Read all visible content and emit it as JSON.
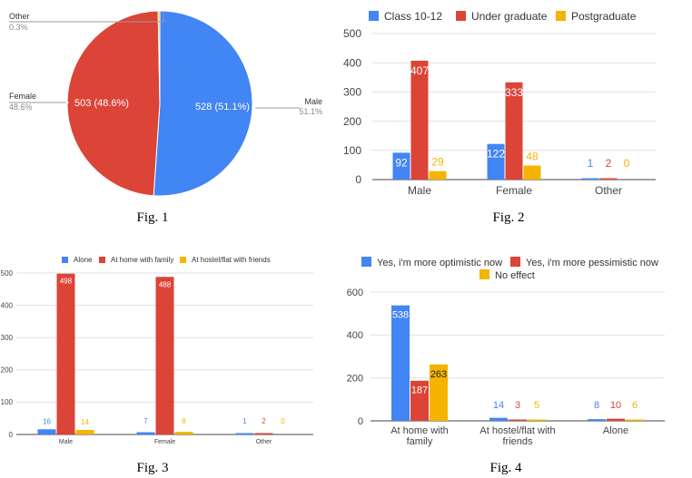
{
  "colors": {
    "blue": "#4285F4",
    "red": "#DB4437",
    "yellow": "#F4B400",
    "grid": "#e0e0e0",
    "axis": "#444444"
  },
  "captions": [
    "Fig. 1",
    "Fig. 2",
    "Fig. 3",
    "Fig. 4"
  ],
  "chart_data": [
    {
      "type": "pie",
      "title": "",
      "slices": [
        {
          "label": "Male",
          "value": 528,
          "percent": "51.1%",
          "inside_label": "528 (51.1%)",
          "color": "#4285F4"
        },
        {
          "label": "Female",
          "value": 503,
          "percent": "48.6%",
          "inside_label": "503 (48.6%)",
          "color": "#DB4437"
        },
        {
          "label": "Other",
          "value": 3,
          "percent": "0.3%",
          "inside_label": "",
          "color": "#F4B400"
        }
      ]
    },
    {
      "type": "bar",
      "title": "",
      "categories": [
        "Male",
        "Female",
        "Other"
      ],
      "series": [
        {
          "name": "Class 10-12",
          "values": [
            92,
            122,
            1
          ],
          "color": "#4285F4"
        },
        {
          "name": "Under graduate",
          "values": [
            407,
            333,
            2
          ],
          "color": "#DB4437"
        },
        {
          "name": "Postgraduate",
          "values": [
            29,
            48,
            0
          ],
          "color": "#F4B400"
        }
      ],
      "yticks": [
        0,
        100,
        200,
        300,
        400,
        500
      ],
      "ylim": [
        0,
        500
      ],
      "legend": "top"
    },
    {
      "type": "bar",
      "title": "",
      "categories": [
        "Male",
        "Female",
        "Other"
      ],
      "series": [
        {
          "name": "Alone",
          "values": [
            16,
            7,
            1
          ],
          "color": "#4285F4"
        },
        {
          "name": "At home with family",
          "values": [
            498,
            488,
            2
          ],
          "color": "#DB4437"
        },
        {
          "name": "At hostel/flat with friends",
          "values": [
            14,
            8,
            0
          ],
          "color": "#F4B400"
        }
      ],
      "yticks": [
        0,
        100,
        200,
        300,
        400,
        500
      ],
      "ylim": [
        0,
        500
      ],
      "legend": "top"
    },
    {
      "type": "bar",
      "title": "",
      "categories": [
        "At home with family",
        "At hostel/flat with friends",
        "Alone"
      ],
      "series": [
        {
          "name": "Yes, i'm more optimistic now",
          "values": [
            538,
            14,
            8
          ],
          "color": "#4285F4"
        },
        {
          "name": "Yes, i'm more pessimistic now",
          "values": [
            187,
            3,
            10
          ],
          "color": "#DB4437"
        },
        {
          "name": "No effect",
          "values": [
            263,
            5,
            6
          ],
          "color": "#F4B400"
        }
      ],
      "yticks": [
        0,
        200,
        400,
        600
      ],
      "ylim": [
        0,
        600
      ],
      "legend": "top"
    }
  ]
}
